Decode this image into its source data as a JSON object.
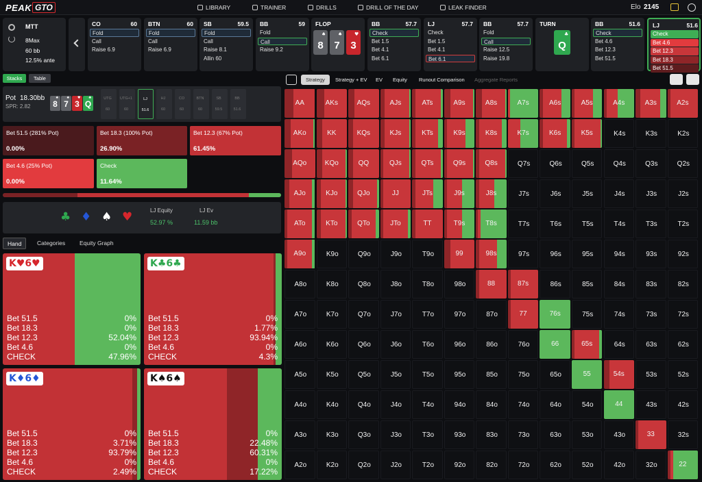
{
  "nav": {
    "logo": [
      "PEAK",
      "GTO"
    ],
    "items": [
      "LIBRARY",
      "TRAINER",
      "DRILLS",
      "DRILL OF THE DAY",
      "LEAK FINDER"
    ],
    "elo_label": "Elo",
    "elo": "2145"
  },
  "settings": [
    "MTT",
    "8Max",
    "60 bb",
    "12.5% ante"
  ],
  "actions": [
    {
      "pos": "CO",
      "stack": "60",
      "options": [
        "Fold",
        "Call",
        "Raise 6.9"
      ],
      "selected": 0,
      "selected_color": "#5b7a99"
    },
    {
      "pos": "BTN",
      "stack": "60",
      "options": [
        "Fold",
        "Call",
        "Raise 6.9"
      ],
      "selected": 0,
      "selected_color": "#5b7a99"
    },
    {
      "pos": "SB",
      "stack": "59.5",
      "options": [
        "Fold",
        "Call",
        "Raise 8.1",
        "Allin 60"
      ],
      "selected": 0,
      "selected_color": "#5b7a99"
    },
    {
      "pos": "BB",
      "stack": "59",
      "options": [
        "Fold",
        "Call",
        "Raise 9.2"
      ],
      "selected": 1,
      "selected_color": "#3fae55"
    },
    {
      "street": "FLOP",
      "cards": [
        {
          "rank": "8",
          "suit": "♠",
          "color": "#5f6166"
        },
        {
          "rank": "7",
          "suit": "♠",
          "color": "#5f6166"
        },
        {
          "rank": "3",
          "suit": "♥",
          "color": "#c8262c"
        }
      ]
    },
    {
      "pos": "BB",
      "stack": "57.7",
      "options": [
        "Check",
        "Bet 1.5",
        "Bet 4.1",
        "Bet 6.1"
      ],
      "selected": 0,
      "selected_color": "#3fae55"
    },
    {
      "pos": "LJ",
      "stack": "57.7",
      "options": [
        "Check",
        "Bet 1.5",
        "Bet 4.1",
        "Bet 6.1"
      ],
      "selected": 3,
      "selected_color": "#d43c3c"
    },
    {
      "pos": "BB",
      "stack": "57.7",
      "options": [
        "Fold",
        "Call",
        "Raise 12.5",
        "Raise 19.8"
      ],
      "selected": 1,
      "selected_color": "#3fae55"
    },
    {
      "street": "TURN",
      "cards": [
        {
          "rank": "Q",
          "suit": "♣",
          "color": "#2fa84f"
        }
      ]
    },
    {
      "pos": "BB",
      "stack": "51.6",
      "options": [
        "Check",
        "Bet 4.6",
        "Bet 12.3",
        "Bet 51.5"
      ],
      "selected": 0,
      "selected_color": "#3fae55"
    },
    {
      "pos": "LJ",
      "stack": "51.6",
      "options": [
        "Check",
        "Bet 4.6",
        "Bet 12.3",
        "Bet 18.3",
        "Bet 51.5"
      ],
      "option_colors": [
        "#3fae55",
        "#e23b3e",
        "#c8363a",
        "#8f2528",
        "#5e1c1e"
      ],
      "active": true
    }
  ],
  "view_tabs": [
    "Stacks",
    "Table"
  ],
  "pot": {
    "pot_label": "Pot",
    "pot": "18.30bb",
    "spr": "SPR: 2.82",
    "board": [
      {
        "rank": "8",
        "suit": "♠",
        "color": "#5f6166"
      },
      {
        "rank": "7",
        "suit": "♠",
        "color": "#5f6166"
      },
      {
        "rank": "3",
        "suit": "♥",
        "color": "#c8262c"
      },
      {
        "rank": "Q",
        "suit": "♣",
        "color": "#2fa84f"
      }
    ],
    "seats": [
      {
        "pos": "UTG",
        "stack": "60"
      },
      {
        "pos": "UTG+1",
        "stack": "60"
      },
      {
        "pos": "LJ",
        "stack": "51.6"
      },
      {
        "pos": "HJ",
        "stack": "60"
      },
      {
        "pos": "CO",
        "stack": "60"
      },
      {
        "pos": "BTN",
        "stack": "60"
      },
      {
        "pos": "SB",
        "stack": "59.5"
      },
      {
        "pos": "BB",
        "stack": "51.6"
      }
    ],
    "active_seat": 2
  },
  "summary": [
    {
      "label": "Bet 51.5 (281% Pot)",
      "value": 0,
      "value_label": "0.00%",
      "color": "#4a1a1d"
    },
    {
      "label": "Bet 18.3 (100% Pot)",
      "value": 26.9,
      "value_label": "26.90%",
      "color": "#7a2225"
    },
    {
      "label": "Bet 12.3 (67% Pot)",
      "value": 61.45,
      "value_label": "61.45%",
      "color": "#c23236"
    },
    {
      "label": "Bet 4.6 (25% Pot)",
      "value": 0,
      "value_label": "0.00%",
      "color": "#e23b3e"
    },
    {
      "label": "Check",
      "value": 11.64,
      "value_label": "11.64%",
      "color": "#5cb85c"
    }
  ],
  "equity": {
    "suits": [
      {
        "symbol": "♣",
        "color": "#2fa84f"
      },
      {
        "symbol": "♦",
        "color": "#2456d6"
      },
      {
        "symbol": "♠",
        "color": "#ffffff"
      },
      {
        "symbol": "♥",
        "color": "#d6262c"
      }
    ],
    "equity_label": "LJ Equity",
    "equity": "52.97 %",
    "ev_label": "LJ Ev",
    "ev": "11.59 bb"
  },
  "hand_tabs": [
    "Hand",
    "Categories",
    "Equity Graph"
  ],
  "combos": {
    "actions": [
      "Bet 51.5",
      "Bet 18.3",
      "Bet 12.3",
      "Bet 4.6",
      "CHECK"
    ],
    "colors": [
      "#5e1c1e",
      "#8f2528",
      "#c23236",
      "#e23b3e",
      "#5cb85c"
    ],
    "hands": [
      {
        "title": "K♥6♥",
        "title_color": "#d6262c",
        "values": [
          0,
          0,
          52.04,
          0,
          47.96
        ],
        "value_labels": [
          "0%",
          "0%",
          "52.04%",
          "0%",
          "47.96%"
        ]
      },
      {
        "title": "K♣6♣",
        "title_color": "#2fa84f",
        "values": [
          0,
          1.77,
          93.94,
          0,
          4.3
        ],
        "value_labels": [
          "0%",
          "1.77%",
          "93.94%",
          "0%",
          "4.3%"
        ]
      },
      {
        "title": "K♦6♦",
        "title_color": "#2456d6",
        "values": [
          0,
          3.71,
          93.79,
          0,
          2.49
        ],
        "value_labels": [
          "0%",
          "3.71%",
          "93.79%",
          "0%",
          "2.49%"
        ]
      },
      {
        "title": "K♠6♠",
        "title_color": "#111111",
        "values": [
          0,
          22.48,
          60.31,
          0,
          17.22
        ],
        "value_labels": [
          "0%",
          "22.48%",
          "60.31%",
          "0%",
          "17.22%"
        ]
      }
    ]
  },
  "toolbar": {
    "tabs": [
      "Strategy",
      "Strategy + EV",
      "EV",
      "Equity",
      "Runout Comparison",
      "Aggregate Reports"
    ],
    "active": 0,
    "disabled": 5
  },
  "grid": {
    "colors": [
      "#8f2528",
      "#c8363a",
      "#5cb85c"
    ],
    "hands": [
      [
        "AA",
        "AKs",
        "AQs",
        "AJs",
        "ATs",
        "A9s",
        "A8s",
        "A7s",
        "A6s",
        "A5s",
        "A4s",
        "A3s",
        "A2s"
      ],
      [
        "AKo",
        "KK",
        "KQs",
        "KJs",
        "KTs",
        "K9s",
        "K8s",
        "K7s",
        "K6s",
        "K5s",
        "K4s",
        "K3s",
        "K2s"
      ],
      [
        "AQo",
        "KQo",
        "QQ",
        "QJs",
        "QTs",
        "Q9s",
        "Q8s",
        "Q7s",
        "Q6s",
        "Q5s",
        "Q4s",
        "Q3s",
        "Q2s"
      ],
      [
        "AJo",
        "KJo",
        "QJo",
        "JJ",
        "JTs",
        "J9s",
        "J8s",
        "J7s",
        "J6s",
        "J5s",
        "J4s",
        "J3s",
        "J2s"
      ],
      [
        "ATo",
        "KTo",
        "QTo",
        "JTo",
        "TT",
        "T9s",
        "T8s",
        "T7s",
        "T6s",
        "T5s",
        "T4s",
        "T3s",
        "T2s"
      ],
      [
        "A9o",
        "K9o",
        "Q9o",
        "J9o",
        "T9o",
        "99",
        "98s",
        "97s",
        "96s",
        "95s",
        "94s",
        "93s",
        "92s"
      ],
      [
        "A8o",
        "K8o",
        "Q8o",
        "J8o",
        "T8o",
        "98o",
        "88",
        "87s",
        "86s",
        "85s",
        "84s",
        "83s",
        "82s"
      ],
      [
        "A7o",
        "K7o",
        "Q7o",
        "J7o",
        "T7o",
        "97o",
        "87o",
        "77",
        "76s",
        "75s",
        "74s",
        "73s",
        "72s"
      ],
      [
        "A6o",
        "K6o",
        "Q6o",
        "J6o",
        "T6o",
        "96o",
        "86o",
        "76o",
        "66",
        "65s",
        "64s",
        "63s",
        "62s"
      ],
      [
        "A5o",
        "K5o",
        "Q5o",
        "J5o",
        "T5o",
        "95o",
        "85o",
        "75o",
        "65o",
        "55",
        "54s",
        "53s",
        "52s"
      ],
      [
        "A4o",
        "K4o",
        "Q4o",
        "J4o",
        "T4o",
        "94o",
        "84o",
        "74o",
        "64o",
        "54o",
        "44",
        "43s",
        "42s"
      ],
      [
        "A3o",
        "K3o",
        "Q3o",
        "J3o",
        "T3o",
        "93o",
        "83o",
        "73o",
        "63o",
        "53o",
        "43o",
        "33",
        "32s"
      ],
      [
        "A2o",
        "K2o",
        "Q2o",
        "J2o",
        "T2o",
        "92o",
        "82o",
        "72o",
        "62o",
        "52o",
        "42o",
        "32o",
        "22"
      ]
    ],
    "mix": [
      [
        [
          30,
          70,
          0
        ],
        [
          25,
          75,
          0
        ],
        [
          20,
          80,
          0
        ],
        [
          15,
          80,
          5
        ],
        [
          10,
          85,
          5
        ],
        [
          20,
          75,
          5
        ],
        [
          20,
          75,
          5
        ],
        [
          0,
          8,
          92
        ],
        [
          10,
          60,
          30
        ],
        [
          10,
          60,
          30
        ],
        [
          10,
          35,
          55
        ],
        [
          15,
          65,
          20
        ],
        [
          10,
          90,
          0
        ]
      ],
      [
        [
          20,
          75,
          5
        ],
        [
          20,
          80,
          0
        ],
        [
          15,
          85,
          0
        ],
        [
          15,
          80,
          5
        ],
        [
          10,
          75,
          15
        ],
        [
          10,
          60,
          30
        ],
        [
          10,
          75,
          15
        ],
        [
          0,
          40,
          60
        ],
        [
          10,
          80,
          10
        ],
        [
          10,
          85,
          5
        ],
        null,
        null,
        null
      ],
      [
        [
          25,
          75,
          0
        ],
        [
          20,
          75,
          5
        ],
        [
          15,
          85,
          0
        ],
        [
          10,
          85,
          5
        ],
        [
          10,
          85,
          5
        ],
        [
          10,
          85,
          5
        ],
        [
          10,
          85,
          5
        ],
        null,
        null,
        null,
        null,
        null,
        null
      ],
      [
        [
          15,
          75,
          10
        ],
        [
          15,
          80,
          5
        ],
        [
          15,
          80,
          5
        ],
        [
          10,
          90,
          0
        ],
        [
          10,
          60,
          30
        ],
        [
          10,
          50,
          40
        ],
        [
          10,
          50,
          40
        ],
        null,
        null,
        null,
        null,
        null,
        null
      ],
      [
        [
          10,
          80,
          10
        ],
        [
          15,
          80,
          5
        ],
        [
          10,
          80,
          10
        ],
        [
          10,
          80,
          10
        ],
        [
          10,
          90,
          0
        ],
        [
          10,
          50,
          40
        ],
        [
          5,
          10,
          85
        ],
        null,
        null,
        null,
        null,
        null,
        null
      ],
      [
        [
          10,
          80,
          10
        ],
        null,
        null,
        null,
        null,
        [
          20,
          80,
          0
        ],
        [
          10,
          60,
          30
        ],
        null,
        null,
        null,
        null,
        null,
        null
      ],
      [
        null,
        null,
        null,
        null,
        null,
        null,
        [
          10,
          90,
          0
        ],
        [
          10,
          90,
          0
        ],
        null,
        null,
        null,
        null,
        null
      ],
      [
        null,
        null,
        null,
        null,
        null,
        null,
        null,
        [
          10,
          90,
          0
        ],
        [
          0,
          0,
          100
        ],
        null,
        null,
        null,
        null
      ],
      [
        null,
        null,
        null,
        null,
        null,
        null,
        null,
        null,
        [
          0,
          0,
          100
        ],
        [
          10,
          80,
          10
        ],
        null,
        null,
        null
      ],
      [
        null,
        null,
        null,
        null,
        null,
        null,
        null,
        null,
        null,
        [
          0,
          0,
          100
        ],
        [
          20,
          80,
          0
        ],
        null,
        null
      ],
      [
        null,
        null,
        null,
        null,
        null,
        null,
        null,
        null,
        null,
        null,
        [
          0,
          0,
          100
        ],
        null,
        null
      ],
      [
        null,
        null,
        null,
        null,
        null,
        null,
        null,
        null,
        null,
        null,
        null,
        [
          10,
          90,
          0
        ],
        null
      ],
      [
        null,
        null,
        null,
        null,
        null,
        null,
        null,
        null,
        null,
        null,
        null,
        null,
        [
          10,
          10,
          80
        ]
      ]
    ]
  }
}
